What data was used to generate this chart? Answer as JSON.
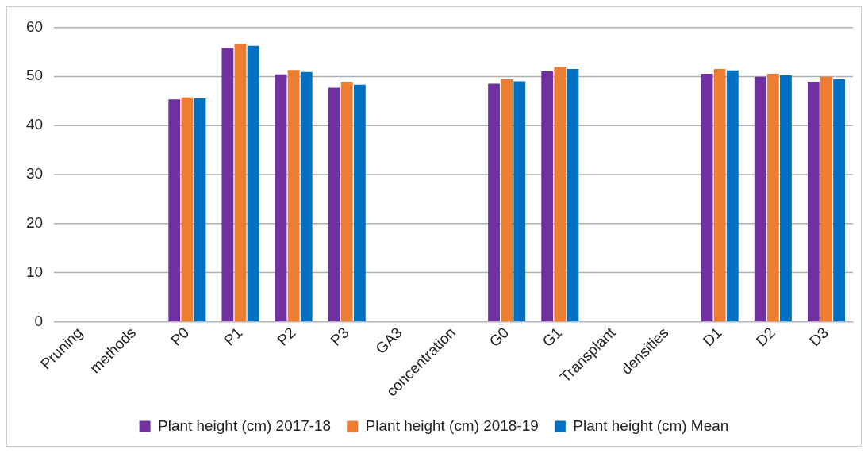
{
  "chart_data": {
    "type": "bar",
    "categories": [
      "Pruning",
      "methods",
      "P0",
      "P1",
      "P2",
      "P3",
      "GA3",
      "concentration",
      "G0",
      "G1",
      "Transplant",
      "densities",
      "D1",
      "D2",
      "D3"
    ],
    "series": [
      {
        "name": "Plant height (cm) 2017-18",
        "color": "#7030a0",
        "values": [
          null,
          null,
          45.3,
          55.8,
          50.4,
          47.7,
          null,
          null,
          48.5,
          51.0,
          null,
          null,
          50.5,
          49.9,
          48.9
        ]
      },
      {
        "name": "Plant height (cm) 2018-19",
        "color": "#ed7d31",
        "values": [
          null,
          null,
          45.7,
          56.6,
          51.3,
          48.9,
          null,
          null,
          49.4,
          51.9,
          null,
          null,
          51.5,
          50.5,
          49.9
        ]
      },
      {
        "name": "Plant height (cm) Mean",
        "color": "#0070c0",
        "values": [
          null,
          null,
          45.5,
          56.2,
          50.9,
          48.3,
          null,
          null,
          49.0,
          51.5,
          null,
          null,
          51.2,
          50.2,
          49.4
        ]
      }
    ],
    "ylim": [
      0,
      60
    ],
    "yticks": [
      0,
      10,
      20,
      30,
      40,
      50,
      60
    ],
    "grid": "y",
    "legend": "bottom"
  }
}
